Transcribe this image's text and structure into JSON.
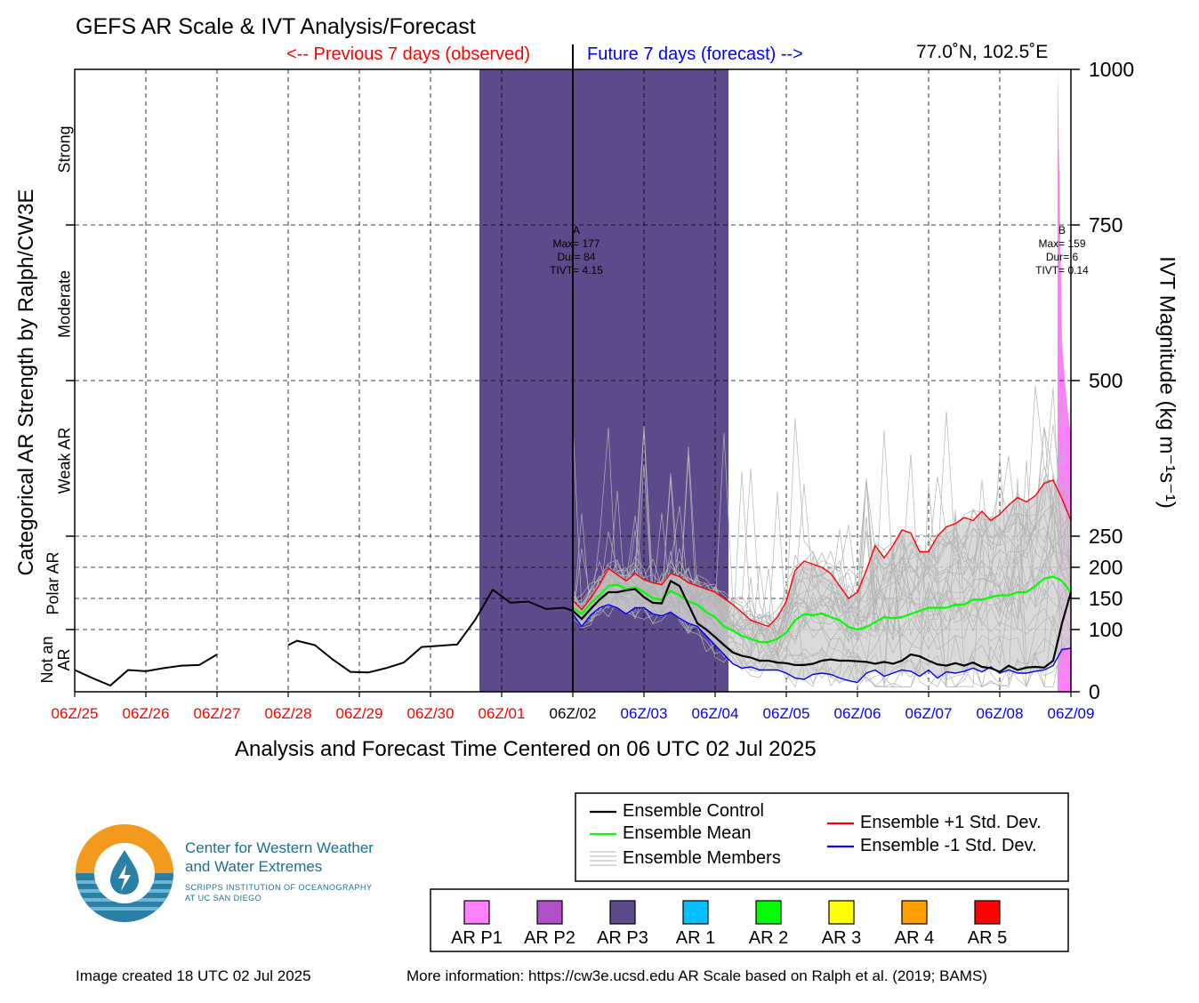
{
  "title": "GEFS AR Scale & IVT Analysis/Forecast",
  "prev_label": "<-- Previous 7 days (observed)",
  "future_label": "Future 7 days (forecast) -->",
  "location": "77.0˚N, 102.5˚E",
  "xlabel": "Analysis and Forecast Time Centered on 06 UTC 02 Jul 2025",
  "ylabel_left": "Categorical AR Strength by Ralph/CW3E",
  "ylabel_right": "IVT Magnitude (kg m⁻¹s⁻¹)",
  "categories": [
    "Strong",
    "Moderate",
    "Weak AR",
    "Polar AR",
    "Not an AR"
  ],
  "logo": {
    "line1": "Center for Western Weather",
    "line2": "and Water Extremes",
    "sub1": "SCRIPPS INSTITUTION OF OCEANOGRAPHY",
    "sub2": "AT UC SAN DIEGO"
  },
  "footer_left": "Image created 18 UTC 02 Jul 2025",
  "footer_right": "More information: https://cw3e.ucsd.edu AR Scale based on Ralph et al. (2019; BAMS)",
  "colors": {
    "observed": "#ff0000",
    "forecast": "#0000ff",
    "control": "#000000",
    "mean": "#00ff00",
    "plus_std": "#ff0000",
    "minus_std": "#0000ff",
    "members": "#b3b3b3",
    "spread": "#d3d3d3"
  },
  "legend_lines": [
    {
      "label": "Ensemble Control",
      "color": "#000000",
      "style": "line"
    },
    {
      "label": "Ensemble Mean",
      "color": "#00ff00",
      "style": "line"
    },
    {
      "label": "Ensemble Members",
      "color": "#b3b3b3",
      "style": "multi"
    },
    {
      "label": "Ensemble +1 Std. Dev.",
      "color": "#ff0000",
      "style": "line"
    },
    {
      "label": "Ensemble -1 Std. Dev.",
      "color": "#0000ff",
      "style": "line"
    }
  ],
  "legend_scale": [
    {
      "label": "AR P1",
      "color": "#ff80ff"
    },
    {
      "label": "AR P2",
      "color": "#b050c8"
    },
    {
      "label": "AR P3",
      "color": "#5c4a8a"
    },
    {
      "label": "AR 1",
      "color": "#00c0ff"
    },
    {
      "label": "AR 2",
      "color": "#00ff00"
    },
    {
      "label": "AR 3",
      "color": "#ffff00"
    },
    {
      "label": "AR 4",
      "color": "#ffa000"
    },
    {
      "label": "AR 5",
      "color": "#ff0000"
    }
  ],
  "chart_data": {
    "type": "line",
    "xlabel": "Analysis and Forecast Time Centered on 06 UTC 02 Jul 2025",
    "ylabel": "IVT Magnitude (kg m⁻¹s⁻¹)",
    "x_unit": "hours relative to 06Z/02 Jul 2025",
    "xlim": [
      -168,
      168
    ],
    "ylim": [
      0,
      1000
    ],
    "y_ticks": [
      0,
      100,
      150,
      200,
      250,
      500,
      750,
      1000
    ],
    "x_ticks": [
      {
        "label": "06Z/25",
        "hour": -168,
        "period": "observed"
      },
      {
        "label": "06Z/26",
        "hour": -144,
        "period": "observed"
      },
      {
        "label": "06Z/27",
        "hour": -120,
        "period": "observed"
      },
      {
        "label": "06Z/28",
        "hour": -96,
        "period": "observed"
      },
      {
        "label": "06Z/29",
        "hour": -72,
        "period": "observed"
      },
      {
        "label": "06Z/30",
        "hour": -48,
        "period": "observed"
      },
      {
        "label": "06Z/01",
        "hour": -24,
        "period": "observed"
      },
      {
        "label": "06Z/02",
        "hour": 0,
        "period": "analysis"
      },
      {
        "label": "06Z/03",
        "hour": 24,
        "period": "forecast"
      },
      {
        "label": "06Z/04",
        "hour": 48,
        "period": "forecast"
      },
      {
        "label": "06Z/05",
        "hour": 72,
        "period": "forecast"
      },
      {
        "label": "06Z/06",
        "hour": 96,
        "period": "forecast"
      },
      {
        "label": "06Z/07",
        "hour": 120,
        "period": "forecast"
      },
      {
        "label": "06Z/08",
        "hour": 144,
        "period": "forecast"
      },
      {
        "label": "06Z/09",
        "hour": 168,
        "period": "forecast"
      }
    ],
    "grid": true,
    "ar_events": [
      {
        "label": "A",
        "scale": "AR P3",
        "start_hour": -31.5,
        "end_hour": 52.5,
        "max": 177,
        "dur": 84,
        "tivt": 4.15,
        "text": [
          "A",
          "Max= 177",
          "Dur= 84",
          "TIVT= 4.15"
        ]
      },
      {
        "label": "B",
        "scale": "AR P1",
        "start_hour": 163.5,
        "end_hour": 168,
        "max": 159,
        "dur": 6,
        "tivt": 0.14,
        "text": [
          "B",
          "Max= 159",
          "Dur= 6",
          "TIVT= 0.14"
        ]
      }
    ],
    "pink_event_peak": {
      "x": [
        163.5,
        165,
        166.5,
        168
      ],
      "y": [
        1000,
        560,
        470,
        410
      ]
    },
    "observed": {
      "name": "Ensemble Control",
      "segments": [
        {
          "x": [
            -168,
            -162,
            -156,
            -150,
            -144,
            -138,
            -132,
            -126,
            -120
          ],
          "y": [
            35,
            22,
            10,
            35,
            33,
            38,
            42,
            43,
            60
          ]
        },
        {
          "x": [
            -96,
            -93,
            -87,
            -81,
            -75,
            -69,
            -63,
            -57,
            -51,
            -45,
            -39,
            -33,
            -27,
            -21,
            -15,
            -9,
            -3,
            0
          ],
          "y": [
            75,
            82,
            75,
            52,
            32,
            31,
            38,
            47,
            72,
            74,
            76,
            115,
            164,
            143,
            145,
            133,
            135,
            130
          ]
        }
      ]
    },
    "forecast_x": [
      0,
      3,
      6,
      9,
      12,
      15,
      18,
      21,
      24,
      27,
      30,
      33,
      36,
      39,
      42,
      45,
      48,
      51,
      54,
      57,
      60,
      63,
      66,
      69,
      72,
      75,
      78,
      81,
      84,
      87,
      90,
      93,
      96,
      99,
      102,
      105,
      108,
      111,
      114,
      117,
      120,
      123,
      126,
      129,
      132,
      135,
      138,
      141,
      144,
      147,
      150,
      153,
      156,
      159,
      162,
      165,
      168
    ],
    "series": [
      {
        "name": "Ensemble Control",
        "color": "#000000",
        "values": [
          130,
          117,
          133,
          148,
          160,
          160,
          163,
          165,
          152,
          143,
          142,
          178,
          170,
          140,
          110,
          100,
          88,
          75,
          63,
          58,
          55,
          50,
          50,
          47,
          46,
          43,
          43,
          45,
          50,
          52,
          50,
          50,
          49,
          48,
          45,
          48,
          45,
          50,
          60,
          57,
          50,
          44,
          42,
          46,
          42,
          47,
          40,
          38,
          32,
          42,
          35,
          39,
          40,
          39,
          50,
          110,
          160
        ]
      },
      {
        "name": "Ensemble Mean",
        "color": "#00ff00",
        "values": [
          135,
          125,
          142,
          155,
          170,
          172,
          165,
          168,
          160,
          150,
          148,
          162,
          155,
          145,
          140,
          128,
          120,
          105,
          98,
          90,
          85,
          80,
          80,
          85,
          95,
          115,
          125,
          123,
          126,
          120,
          115,
          104,
          100,
          104,
          112,
          120,
          118,
          120,
          125,
          130,
          135,
          135,
          135,
          140,
          140,
          148,
          148,
          152,
          155,
          155,
          160,
          160,
          170,
          182,
          185,
          178,
          160
        ]
      },
      {
        "name": "Ensemble +1 Std. Dev.",
        "color": "#ff0000",
        "values": [
          147,
          132,
          150,
          172,
          198,
          188,
          178,
          190,
          180,
          175,
          172,
          190,
          185,
          175,
          170,
          165,
          160,
          150,
          140,
          128,
          115,
          110,
          105,
          120,
          145,
          195,
          210,
          205,
          200,
          190,
          170,
          150,
          160,
          195,
          235,
          215,
          235,
          260,
          255,
          225,
          225,
          250,
          265,
          270,
          280,
          275,
          290,
          275,
          285,
          300,
          312,
          305,
          315,
          335,
          340,
          310,
          275
        ]
      },
      {
        "name": "Ensemble -1 Std. Dev.",
        "color": "#0000ff",
        "values": [
          125,
          105,
          123,
          135,
          140,
          135,
          125,
          135,
          135,
          125,
          122,
          128,
          118,
          110,
          105,
          90,
          75,
          60,
          45,
          38,
          40,
          35,
          35,
          35,
          30,
          22,
          20,
          28,
          30,
          28,
          22,
          18,
          15,
          30,
          35,
          25,
          30,
          35,
          33,
          25,
          35,
          22,
          32,
          30,
          33,
          38,
          32,
          40,
          30,
          35,
          30,
          30,
          33,
          35,
          42,
          68,
          70
        ]
      }
    ]
  }
}
